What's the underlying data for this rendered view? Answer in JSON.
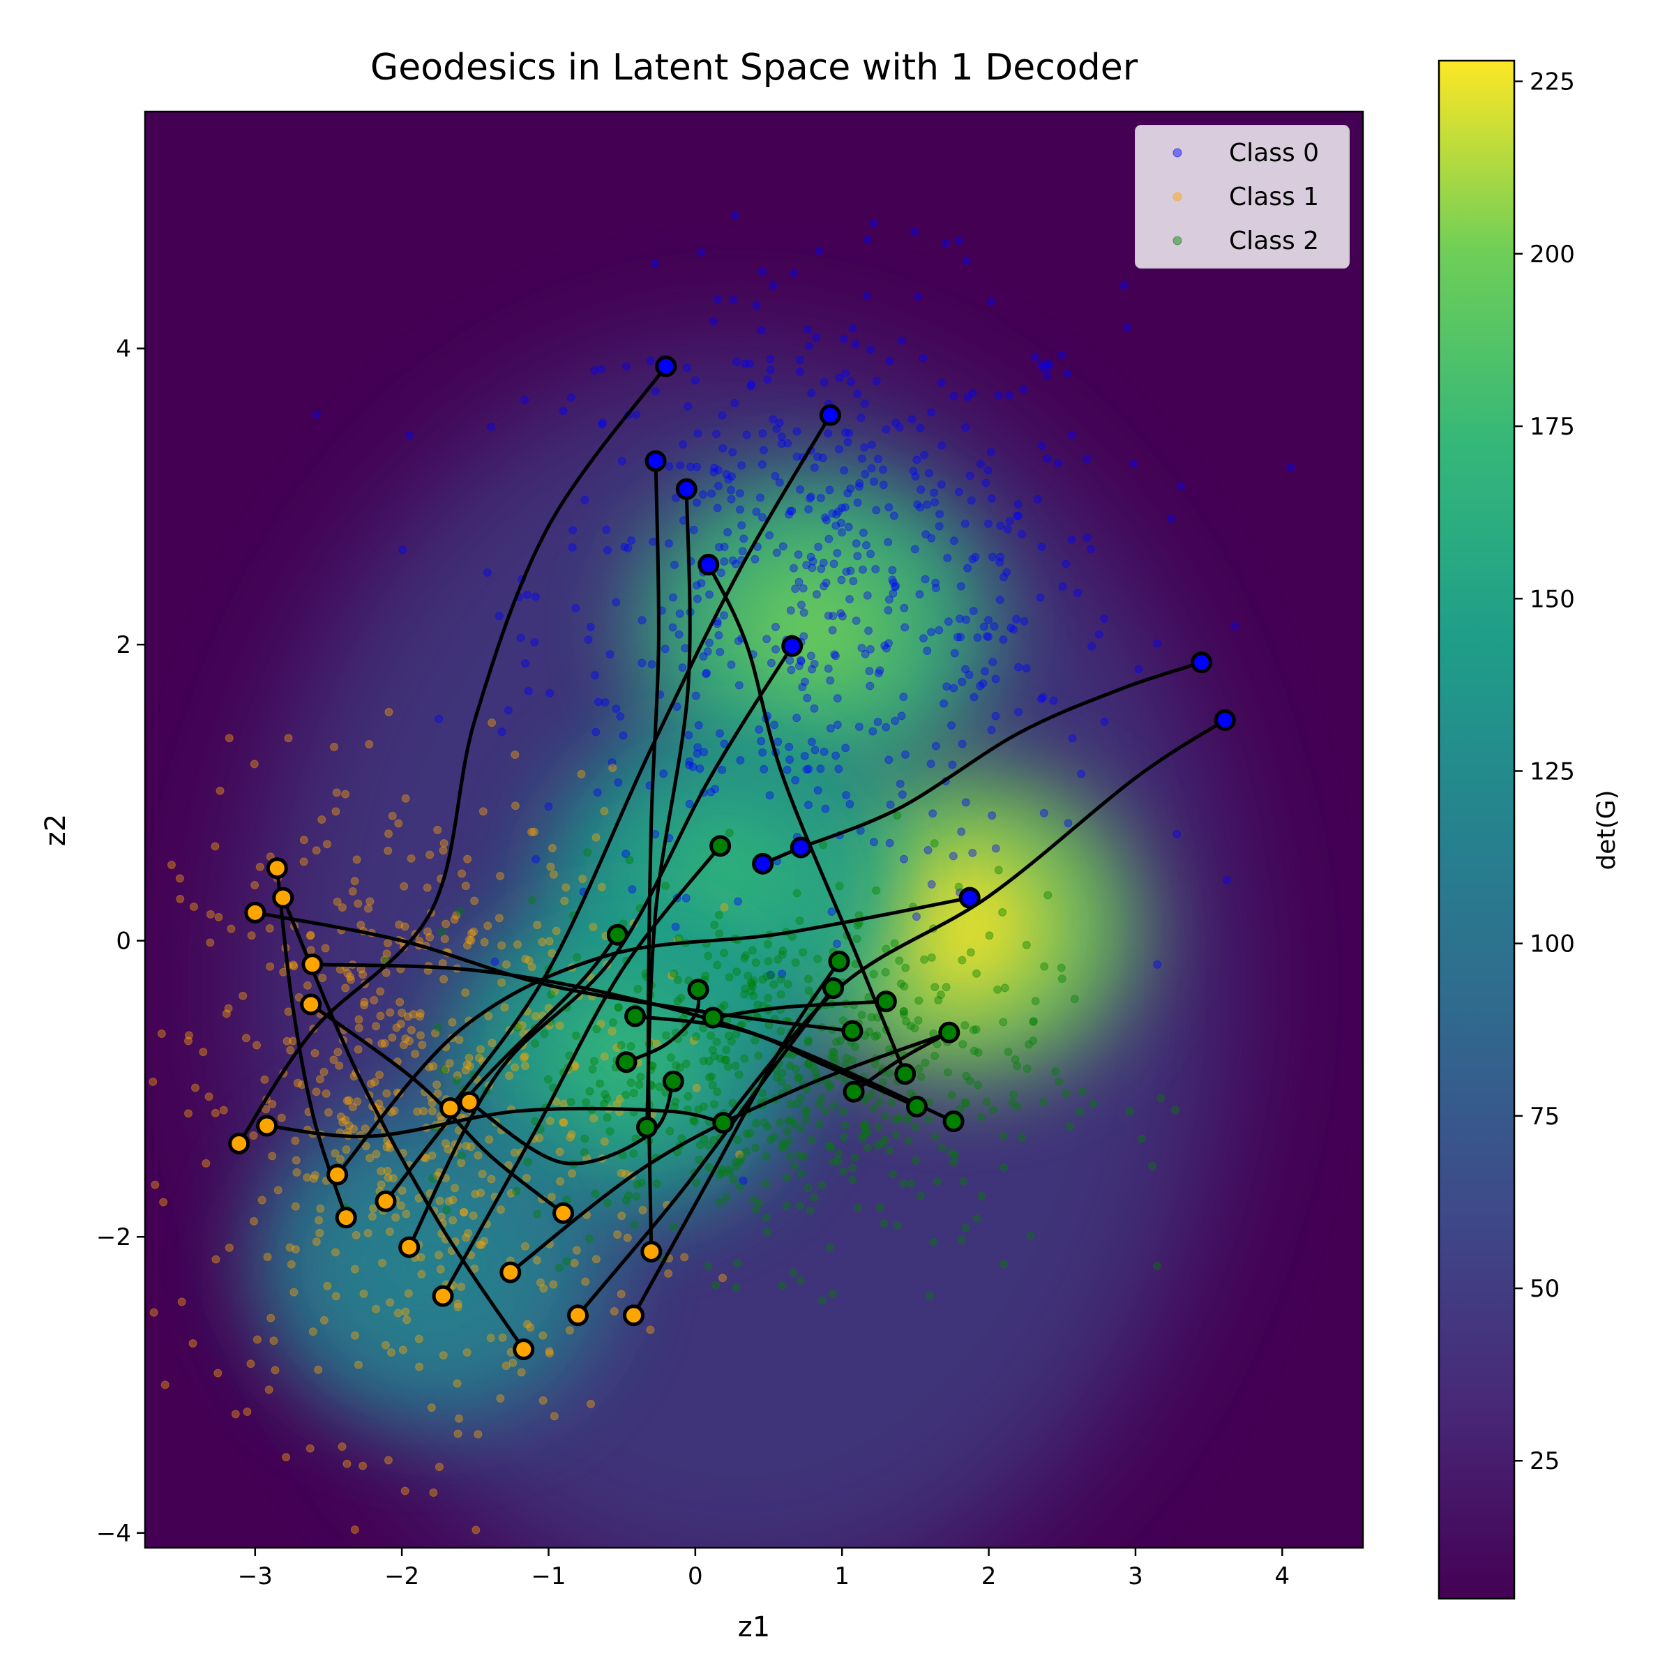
{
  "chart_data": {
    "type": "scatter",
    "title": "Geodesics in Latent Space with 1 Decoder",
    "xlabel": "z1",
    "ylabel": "z2",
    "xlim": [
      -3.75,
      4.55
    ],
    "ylim": [
      -4.1,
      5.6
    ],
    "x_ticks": [
      -3,
      -2,
      -1,
      0,
      1,
      2,
      3,
      4
    ],
    "x_tick_labels": [
      "−3",
      "−2",
      "−1",
      "0",
      "1",
      "2",
      "3",
      "4"
    ],
    "y_ticks": [
      -4,
      -2,
      0,
      2,
      4
    ],
    "y_tick_labels": [
      "−4",
      "−2",
      "0",
      "2",
      "4"
    ],
    "legend_position": "top-right",
    "colorbar": {
      "label": "det(G)",
      "range": [
        5,
        228
      ],
      "ticks": [
        25,
        50,
        75,
        100,
        125,
        150,
        175,
        200,
        225
      ],
      "tick_labels": [
        "25",
        "50",
        "75",
        "100",
        "125",
        "150",
        "175",
        "200",
        "225"
      ],
      "colormap": "viridis"
    },
    "background_density_peaks": [
      {
        "x": 1.8,
        "y": 0.1,
        "value": 228
      },
      {
        "x": 0.8,
        "y": 2.1,
        "value": 195
      },
      {
        "x": 0.2,
        "y": 0.4,
        "value": 180
      },
      {
        "x": -0.5,
        "y": -0.8,
        "value": 160
      },
      {
        "x": -1.8,
        "y": -2.2,
        "value": 130
      }
    ],
    "series": [
      {
        "name": "Class 0",
        "color": "#0000ff",
        "center": [
          0.9,
          2.4
        ],
        "spread": [
          1.0,
          1.0
        ],
        "count": 600
      },
      {
        "name": "Class 1",
        "color": "#ffa500",
        "center": [
          -1.9,
          -1.1
        ],
        "spread": [
          0.8,
          1.1
        ],
        "count": 600
      },
      {
        "name": "Class 2",
        "color": "#008000",
        "center": [
          0.6,
          -0.9
        ],
        "spread": [
          0.9,
          0.6
        ],
        "count": 600
      }
    ],
    "endpoints": [
      {
        "x": -0.2,
        "y": 3.88,
        "class": 0
      },
      {
        "x": 0.92,
        "y": 3.55,
        "class": 0
      },
      {
        "x": -0.27,
        "y": 3.24,
        "class": 0
      },
      {
        "x": -0.06,
        "y": 3.05,
        "class": 0
      },
      {
        "x": 0.09,
        "y": 2.54,
        "class": 0
      },
      {
        "x": 0.66,
        "y": 1.99,
        "class": 0
      },
      {
        "x": 3.45,
        "y": 1.88,
        "class": 0
      },
      {
        "x": 3.61,
        "y": 1.49,
        "class": 0
      },
      {
        "x": 0.72,
        "y": 0.63,
        "class": 0
      },
      {
        "x": 0.46,
        "y": 0.52,
        "class": 0
      },
      {
        "x": 1.87,
        "y": 0.29,
        "class": 0
      },
      {
        "x": -2.85,
        "y": 0.49,
        "class": 1
      },
      {
        "x": -2.81,
        "y": 0.29,
        "class": 1
      },
      {
        "x": -3.0,
        "y": 0.19,
        "class": 1
      },
      {
        "x": -2.61,
        "y": -0.16,
        "class": 1
      },
      {
        "x": -2.62,
        "y": -0.43,
        "class": 1
      },
      {
        "x": -1.67,
        "y": -1.13,
        "class": 1
      },
      {
        "x": -1.54,
        "y": -1.09,
        "class": 1
      },
      {
        "x": -3.11,
        "y": -1.37,
        "class": 1
      },
      {
        "x": -2.92,
        "y": -1.25,
        "class": 1
      },
      {
        "x": -2.44,
        "y": -1.58,
        "class": 1
      },
      {
        "x": -2.38,
        "y": -1.87,
        "class": 1
      },
      {
        "x": -2.11,
        "y": -1.76,
        "class": 1
      },
      {
        "x": -0.9,
        "y": -1.84,
        "class": 1
      },
      {
        "x": -1.95,
        "y": -2.07,
        "class": 1
      },
      {
        "x": -0.3,
        "y": -2.1,
        "class": 1
      },
      {
        "x": -1.26,
        "y": -2.24,
        "class": 1
      },
      {
        "x": -1.72,
        "y": -2.4,
        "class": 1
      },
      {
        "x": -0.8,
        "y": -2.53,
        "class": 1
      },
      {
        "x": -0.42,
        "y": -2.53,
        "class": 1
      },
      {
        "x": -1.17,
        "y": -2.76,
        "class": 1
      },
      {
        "x": 0.17,
        "y": 0.64,
        "class": 2
      },
      {
        "x": -0.53,
        "y": 0.04,
        "class": 2
      },
      {
        "x": 0.98,
        "y": -0.14,
        "class": 2
      },
      {
        "x": 0.94,
        "y": -0.32,
        "class": 2
      },
      {
        "x": 0.02,
        "y": -0.33,
        "class": 2
      },
      {
        "x": 1.3,
        "y": -0.41,
        "class": 2
      },
      {
        "x": -0.41,
        "y": -0.51,
        "class": 2
      },
      {
        "x": 0.12,
        "y": -0.52,
        "class": 2
      },
      {
        "x": 1.07,
        "y": -0.61,
        "class": 2
      },
      {
        "x": 1.73,
        "y": -0.62,
        "class": 2
      },
      {
        "x": -0.47,
        "y": -0.82,
        "class": 2
      },
      {
        "x": 1.43,
        "y": -0.9,
        "class": 2
      },
      {
        "x": -0.15,
        "y": -0.95,
        "class": 2
      },
      {
        "x": 1.08,
        "y": -1.02,
        "class": 2
      },
      {
        "x": 1.51,
        "y": -1.12,
        "class": 2
      },
      {
        "x": 1.76,
        "y": -1.22,
        "class": 2
      },
      {
        "x": 0.19,
        "y": -1.23,
        "class": 2
      },
      {
        "x": -0.33,
        "y": -1.26,
        "class": 2
      }
    ],
    "endpoint_colors": [
      "#0000ff",
      "#ffa500",
      "#008000"
    ],
    "geodesics": [
      [
        [
          -3.11,
          -1.37
        ],
        [
          -2.6,
          -0.6
        ],
        [
          -1.8,
          0.2
        ],
        [
          -1.5,
          1.5
        ],
        [
          -1.0,
          2.8
        ],
        [
          -0.2,
          3.88
        ]
      ],
      [
        [
          -1.67,
          -1.13
        ],
        [
          -1.0,
          -0.2
        ],
        [
          -0.3,
          1.3
        ],
        [
          0.3,
          2.5
        ],
        [
          0.92,
          3.55
        ]
      ],
      [
        [
          -0.3,
          -2.1
        ],
        [
          -0.32,
          -0.7
        ],
        [
          -0.3,
          0.8
        ],
        [
          -0.25,
          2.0
        ],
        [
          -0.27,
          3.24
        ]
      ],
      [
        [
          -0.33,
          -1.26
        ],
        [
          -0.27,
          0.2
        ],
        [
          -0.05,
          1.7
        ],
        [
          -0.06,
          3.05
        ]
      ],
      [
        [
          1.43,
          -0.9
        ],
        [
          1.1,
          -0.1
        ],
        [
          0.6,
          1.1
        ],
        [
          0.35,
          2.0
        ],
        [
          0.09,
          2.54
        ]
      ],
      [
        [
          -1.95,
          -2.07
        ],
        [
          -1.35,
          -0.9
        ],
        [
          -0.55,
          -0.1
        ],
        [
          0.1,
          1.1
        ],
        [
          0.66,
          1.99
        ]
      ],
      [
        [
          0.72,
          0.63
        ],
        [
          1.4,
          0.9
        ],
        [
          2.2,
          1.4
        ],
        [
          2.9,
          1.7
        ],
        [
          3.45,
          1.88
        ]
      ],
      [
        [
          0.19,
          -1.23
        ],
        [
          1.0,
          -0.3
        ],
        [
          2.0,
          0.3
        ],
        [
          3.0,
          1.1
        ],
        [
          3.61,
          1.49
        ]
      ],
      [
        [
          0.46,
          0.52
        ],
        [
          0.72,
          0.63
        ]
      ],
      [
        [
          -2.44,
          -1.58
        ],
        [
          -1.6,
          -0.6
        ],
        [
          -0.6,
          -0.1
        ],
        [
          0.6,
          0.05
        ],
        [
          1.87,
          0.29
        ]
      ],
      [
        [
          -2.85,
          0.49
        ],
        [
          -2.75,
          -0.4
        ],
        [
          -2.6,
          -1.2
        ],
        [
          -2.38,
          -1.87
        ]
      ],
      [
        [
          -2.81,
          0.29
        ],
        [
          -2.3,
          -0.9
        ],
        [
          -1.75,
          -1.9
        ],
        [
          -1.17,
          -2.76
        ]
      ],
      [
        [
          -3.0,
          0.19
        ],
        [
          -2.0,
          0.0
        ],
        [
          -1.0,
          -0.3
        ],
        [
          0.2,
          -0.5
        ],
        [
          1.07,
          -0.61
        ]
      ],
      [
        [
          -2.61,
          -0.16
        ],
        [
          -1.5,
          -0.2
        ],
        [
          -0.4,
          -0.4
        ],
        [
          0.6,
          -0.7
        ],
        [
          1.76,
          -1.22
        ]
      ],
      [
        [
          -2.62,
          -0.43
        ],
        [
          -1.9,
          -0.95
        ],
        [
          -1.4,
          -1.45
        ],
        [
          -0.9,
          -1.84
        ]
      ],
      [
        [
          -2.92,
          -1.25
        ],
        [
          -2.2,
          -1.32
        ],
        [
          -1.2,
          -1.15
        ],
        [
          -0.2,
          -1.15
        ],
        [
          0.19,
          -1.23
        ]
      ],
      [
        [
          -2.11,
          -1.76
        ],
        [
          -1.5,
          -1.0
        ],
        [
          -0.8,
          -0.3
        ],
        [
          -0.53,
          0.04
        ]
      ],
      [
        [
          -1.72,
          -2.4
        ],
        [
          -1.1,
          -1.3
        ],
        [
          -0.5,
          -0.2
        ],
        [
          0.17,
          0.64
        ]
      ],
      [
        [
          -1.26,
          -2.24
        ],
        [
          -0.3,
          -1.5
        ],
        [
          0.7,
          -1.0
        ],
        [
          1.73,
          -0.62
        ]
      ],
      [
        [
          -0.8,
          -2.53
        ],
        [
          -0.1,
          -1.7
        ],
        [
          0.5,
          -0.9
        ],
        [
          0.94,
          -0.32
        ]
      ],
      [
        [
          -0.42,
          -2.53
        ],
        [
          0.1,
          -1.6
        ],
        [
          0.6,
          -0.7
        ],
        [
          0.98,
          -0.14
        ]
      ],
      [
        [
          -1.54,
          -1.09
        ],
        [
          -0.9,
          -1.5
        ],
        [
          -0.3,
          -1.3
        ],
        [
          -0.15,
          -0.95
        ]
      ],
      [
        [
          -0.41,
          -0.51
        ],
        [
          0.3,
          -0.6
        ],
        [
          0.9,
          -0.85
        ],
        [
          1.51,
          -1.12
        ]
      ],
      [
        [
          -0.47,
          -0.82
        ],
        [
          -0.2,
          -0.7
        ],
        [
          0.0,
          -0.5
        ],
        [
          0.02,
          -0.33
        ]
      ],
      [
        [
          0.12,
          -0.52
        ],
        [
          0.6,
          -0.45
        ],
        [
          1.3,
          -0.41
        ]
      ],
      [
        [
          1.08,
          -1.02
        ],
        [
          1.4,
          -0.8
        ],
        [
          1.73,
          -0.62
        ]
      ]
    ],
    "legend_entries": [
      "Class 0",
      "Class 1",
      "Class 2"
    ]
  }
}
